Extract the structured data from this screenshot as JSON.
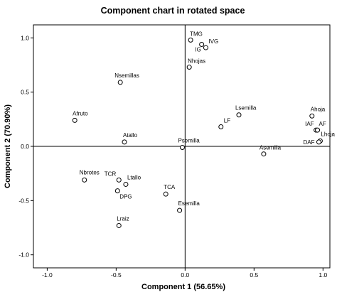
{
  "chart_data": {
    "type": "scatter",
    "title": "Component chart in rotated space",
    "xlabel": "Component 1 (56.65%)",
    "ylabel": "Component 2 (70.90%)",
    "xlim": [
      -1.1,
      1.05
    ],
    "ylim": [
      -1.12,
      1.12
    ],
    "xticks": [
      -1.0,
      -0.5,
      0.0,
      0.5,
      1.0
    ],
    "xtick_labels": [
      "-1.0",
      "-0.5",
      "0.0",
      "0.5",
      "1.0"
    ],
    "yticks": [
      -1.0,
      -0.5,
      0.0,
      0.5,
      1.0
    ],
    "ytick_labels": [
      "-1.0",
      "-0.5",
      "0.0",
      "0.5",
      "1.0"
    ],
    "reference_lines": {
      "x": 0,
      "y": 0
    },
    "marker": "open-circle",
    "colors": {
      "axis": "#000000",
      "marker": "#000000",
      "background": "#ffffff"
    },
    "points": [
      {
        "label": "TMG",
        "x": 0.04,
        "y": 0.98
      },
      {
        "label": "IVG",
        "x": 0.15,
        "y": 0.91
      },
      {
        "label": "IG",
        "x": 0.12,
        "y": 0.94
      },
      {
        "label": "Nhojas",
        "x": 0.03,
        "y": 0.73
      },
      {
        "label": "Nsemillas",
        "x": -0.47,
        "y": 0.59
      },
      {
        "label": "Lsemilla",
        "x": 0.39,
        "y": 0.29
      },
      {
        "label": "LF",
        "x": 0.26,
        "y": 0.18
      },
      {
        "label": "Ahoja",
        "x": 0.92,
        "y": 0.28
      },
      {
        "label": "IAF",
        "x": 0.95,
        "y": 0.15
      },
      {
        "label": "AF",
        "x": 0.96,
        "y": 0.15
      },
      {
        "label": "Lhoja",
        "x": 0.98,
        "y": 0.05
      },
      {
        "label": "DAF",
        "x": 0.97,
        "y": 0.04
      },
      {
        "label": "Afruto",
        "x": -0.8,
        "y": 0.24
      },
      {
        "label": "Atallo",
        "x": -0.44,
        "y": 0.04
      },
      {
        "label": "Psemilla",
        "x": -0.02,
        "y": -0.01
      },
      {
        "label": "Asemilla",
        "x": 0.57,
        "y": -0.07
      },
      {
        "label": "Nbrotes",
        "x": -0.73,
        "y": -0.31
      },
      {
        "label": "TCR",
        "x": -0.48,
        "y": -0.31
      },
      {
        "label": "Ltallo",
        "x": -0.43,
        "y": -0.35
      },
      {
        "label": "DPG",
        "x": -0.49,
        "y": -0.41
      },
      {
        "label": "TCA",
        "x": -0.14,
        "y": -0.44
      },
      {
        "label": "Esemilla",
        "x": -0.04,
        "y": -0.59
      },
      {
        "label": "Lraiz",
        "x": -0.48,
        "y": -0.73
      }
    ]
  }
}
